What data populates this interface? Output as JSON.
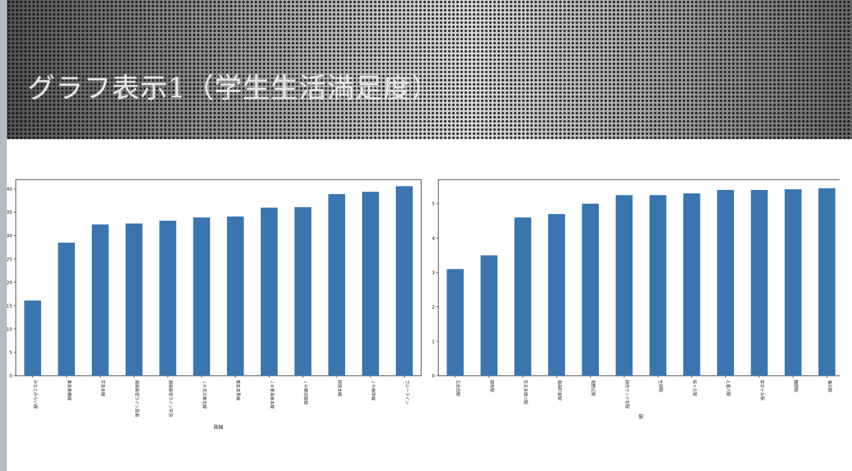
{
  "banner": {
    "title": "グラフ表示1（学生生活満足度）"
  },
  "chart_data": [
    {
      "type": "bar",
      "xlabel": "路線",
      "ylabel": "",
      "ylim": [
        0,
        42
      ],
      "yticks": [
        0,
        5,
        10,
        15,
        20,
        25,
        30,
        35,
        40
      ],
      "categories": [
        "みなとみらい線",
        "東急東横線",
        "京急本線",
        "湘南新宿ライン高湘",
        "湘南新宿ライン宇須",
        "ＪＲ京浜東北線",
        "東急目黒線",
        "ＪＲ東海道本線",
        "ＪＲ横須賀線",
        "相鉄本線",
        "ＪＲ根岸線",
        "ブルーライン"
      ],
      "values": [
        16.1,
        28.5,
        32.4,
        32.6,
        33.2,
        33.9,
        34.1,
        36.0,
        36.1,
        38.9,
        39.4,
        40.6
      ],
      "color": "#3a75b0"
    },
    {
      "type": "bar",
      "xlabel": "駅",
      "ylabel": "",
      "ylim": [
        0,
        5.7
      ],
      "yticks": [
        0,
        1,
        2,
        3,
        4,
        5
      ],
      "categories": [
        "五反田駅",
        "調布駅",
        "京王多摩川駅",
        "湘南町屋駅",
        "湘野辺駅",
        "読売ランド前駅",
        "生田駅",
        "桜ヶ丘駅",
        "上星川駅",
        "百合ヶ丘駅",
        "鶴間駅",
        "浦浜駅"
      ],
      "values": [
        3.1,
        3.5,
        4.6,
        4.7,
        5.0,
        5.25,
        5.25,
        5.3,
        5.4,
        5.4,
        5.42,
        5.45
      ],
      "color": "#3a75b0"
    }
  ]
}
